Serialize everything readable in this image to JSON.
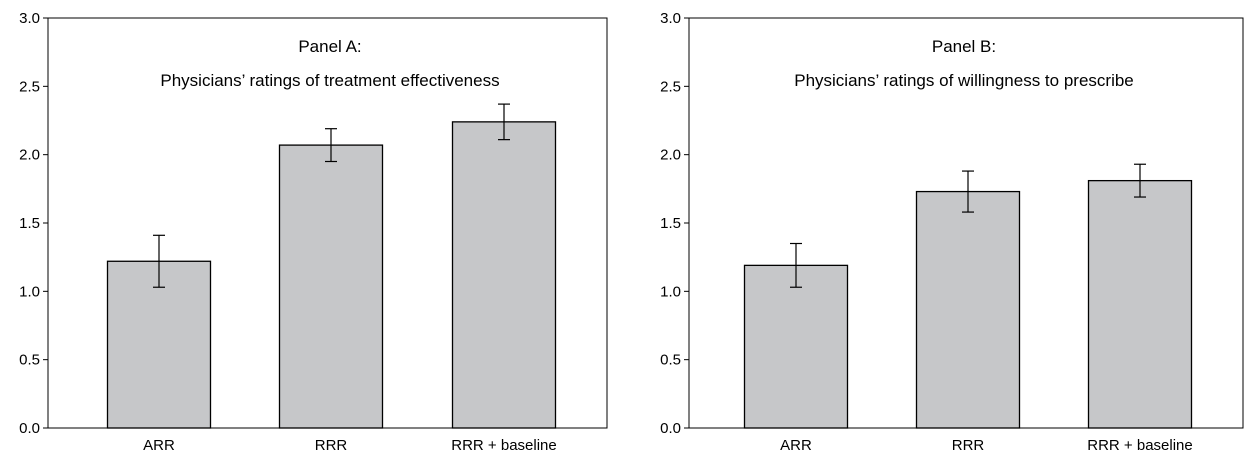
{
  "chart_data": [
    {
      "type": "bar",
      "title": "Panel A:",
      "subtitle": "Physicians’ ratings of treatment effectiveness",
      "categories": [
        "ARR",
        "RRR",
        "RRR + baseline"
      ],
      "values": [
        1.22,
        2.07,
        2.24
      ],
      "error_low": [
        1.03,
        1.95,
        2.11
      ],
      "error_high": [
        1.41,
        2.19,
        2.37
      ],
      "ylim": [
        0,
        3.0
      ],
      "yticks": [
        "0.0",
        "0.5",
        "1.0",
        "1.5",
        "2.0",
        "2.5",
        "3.0"
      ],
      "grid": false,
      "bar_color": "#c6c7c9"
    },
    {
      "type": "bar",
      "title": "Panel B:",
      "subtitle": "Physicians’ ratings of willingness to prescribe",
      "categories": [
        "ARR",
        "RRR",
        "RRR + baseline"
      ],
      "values": [
        1.19,
        1.73,
        1.81
      ],
      "error_low": [
        1.03,
        1.58,
        1.69
      ],
      "error_high": [
        1.35,
        1.88,
        1.93
      ],
      "ylim": [
        0,
        3.0
      ],
      "yticks": [
        "0.0",
        "0.5",
        "1.0",
        "1.5",
        "2.0",
        "2.5",
        "3.0"
      ],
      "grid": false,
      "bar_color": "#c6c7c9"
    }
  ]
}
